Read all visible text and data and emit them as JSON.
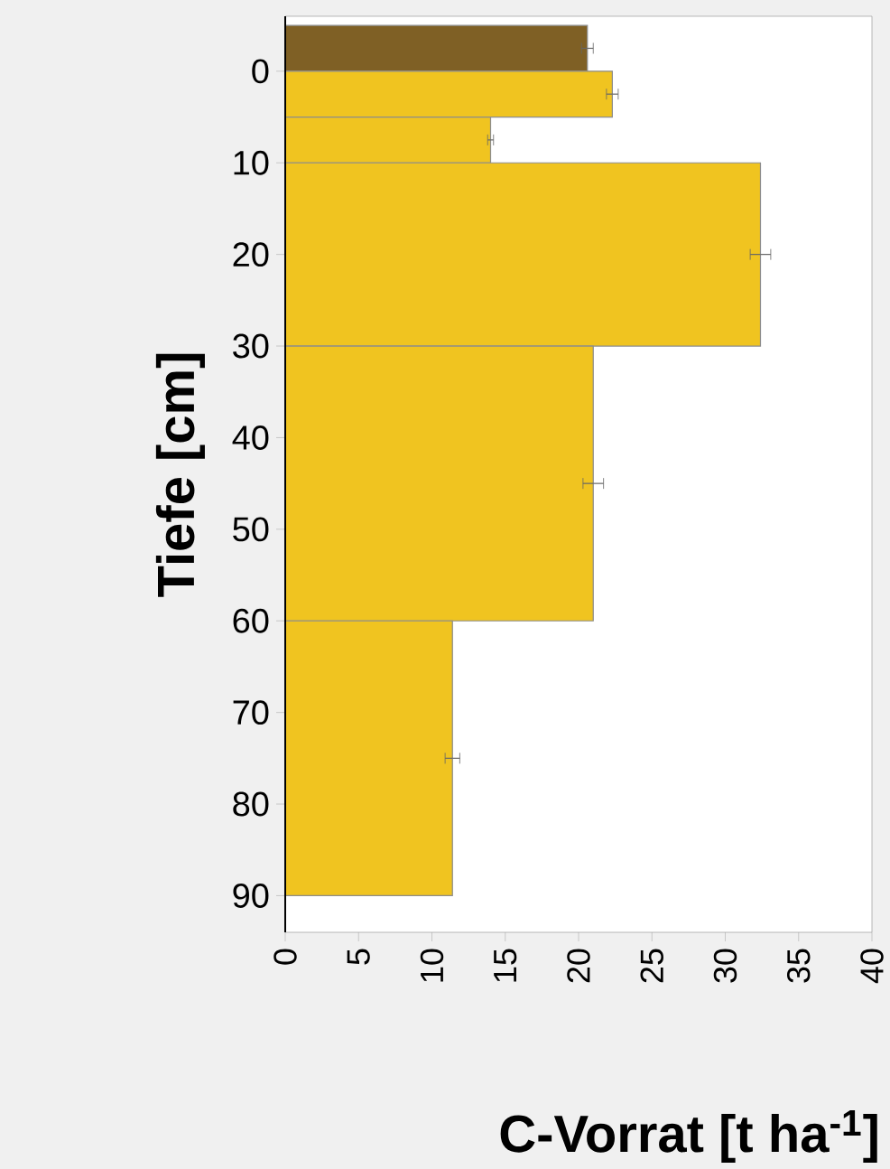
{
  "chart_data": {
    "type": "histogram",
    "orientation": "horizontal",
    "xlabel": "C-Vorrat [t ha$^{-1}$]",
    "ylabel": "Tiefe [cm]",
    "bins": [
      -5,
      0,
      5,
      10,
      30,
      60,
      90
    ],
    "values": [
      20.6,
      22.3,
      14.0,
      32.4,
      21.0,
      11.4
    ],
    "colors": [
      "#7f6025",
      "#f0c420",
      "#f0c420",
      "#f0c420",
      "#f0c420",
      "#f0c420"
    ],
    "errors": [
      0.4,
      0.4,
      0.2,
      0.7,
      0.7,
      0.5
    ],
    "xlim": [
      0,
      40
    ],
    "xticks": [
      0,
      5,
      10,
      15,
      20,
      25,
      30,
      35,
      40
    ],
    "ylim": [
      94,
      -6
    ],
    "yticks": [
      0,
      10,
      20,
      30,
      40,
      50,
      60,
      70,
      80,
      90
    ]
  }
}
